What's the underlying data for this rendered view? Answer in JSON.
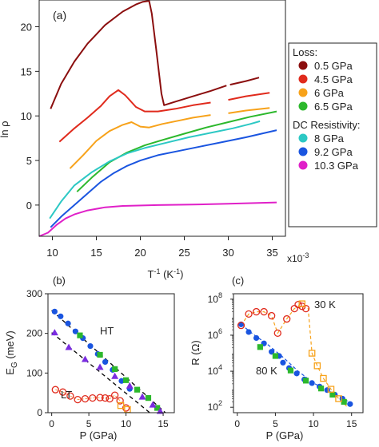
{
  "chart_data": [
    {
      "panel": "(a)",
      "type": "line",
      "xlabel": "T",
      "xlabel_sup": "-1",
      "xlabel_unit_pre": " (K",
      "xlabel_unit_sup": "-1",
      "xlabel_unit_post": ")",
      "x_multiplier": "x10",
      "x_multiplier_sup": "-3",
      "ylabel": "ln ρ",
      "xlim": [
        8.5,
        36.5
      ],
      "ylim": [
        -3.5,
        23
      ],
      "xticks": [
        "10",
        "15",
        "20",
        "25",
        "30",
        "35"
      ],
      "yticks": [
        "0",
        "5",
        "10",
        "15",
        "20"
      ],
      "legend": {
        "groups": [
          {
            "title": "Loss:",
            "entries": [
              {
                "label": "0.5 GPa",
                "color": "#8b0e0e"
              },
              {
                "label": "4.5 GPa",
                "color": "#e02a1c"
              },
              {
                "label": "6 GPa",
                "color": "#f7a21a"
              },
              {
                "label": "6.5 GPa",
                "color": "#2cb82c"
              }
            ]
          },
          {
            "title": "DC Resistivity:",
            "entries": [
              {
                "label": "8 GPa",
                "color": "#2cc8c4"
              },
              {
                "label": "9.2 GPa",
                "color": "#1a55e0"
              },
              {
                "label": "10.3 GPa",
                "color": "#e020c8"
              }
            ]
          }
        ]
      },
      "series": [
        {
          "name": "0.5 GPa",
          "color": "#8b0e0e",
          "segments": [
            [
              [
                9.8,
                10.8
              ],
              [
                11,
                13.6
              ],
              [
                12.5,
                16.1
              ],
              [
                14,
                18.1
              ],
              [
                16,
                20.2
              ],
              [
                18,
                21.7
              ],
              [
                19.5,
                22.5
              ],
              [
                20.3,
                22.8
              ],
              [
                21,
                22.9
              ],
              [
                21.3,
                21.5
              ],
              [
                21.8,
                17.5
              ],
              [
                22.4,
                12.5
              ],
              [
                22.7,
                11.2
              ],
              [
                24,
                11.6
              ],
              [
                26,
                12.2
              ],
              [
                28,
                12.8
              ],
              [
                29.8,
                13.4
              ]
            ],
            [
              [
                30.2,
                13.5
              ],
              [
                32,
                13.9
              ],
              [
                33.5,
                14.3
              ]
            ]
          ]
        },
        {
          "name": "4.5 GPa",
          "color": "#e02a1c",
          "segments": [
            [
              [
                10.8,
                7.1
              ],
              [
                12.5,
                8.6
              ],
              [
                14,
                9.8
              ],
              [
                15.5,
                11.1
              ],
              [
                16.5,
                12.2
              ],
              [
                17.5,
                12.9
              ],
              [
                18.3,
                12.3
              ],
              [
                19.5,
                11
              ],
              [
                20.5,
                10.5
              ],
              [
                22,
                10.5
              ],
              [
                24,
                10.8
              ],
              [
                26,
                11.2
              ],
              [
                28,
                11.5
              ]
            ],
            [
              [
                30,
                11.8
              ],
              [
                32,
                12.2
              ],
              [
                34.7,
                12.6
              ]
            ]
          ]
        },
        {
          "name": "6 GPa",
          "color": "#f7a21a",
          "segments": [
            [
              [
                12,
                4.1
              ],
              [
                13.5,
                5.6
              ],
              [
                15,
                7.2
              ],
              [
                16.5,
                8.3
              ],
              [
                18,
                9
              ],
              [
                19,
                9.3
              ],
              [
                20,
                8.8
              ],
              [
                21,
                8.7
              ],
              [
                22.5,
                9.1
              ],
              [
                24.5,
                9.5
              ],
              [
                26,
                9.8
              ],
              [
                28,
                10.1
              ]
            ],
            [
              [
                30,
                10.3
              ],
              [
                32,
                10.6
              ],
              [
                34.7,
                10.9
              ]
            ]
          ]
        },
        {
          "name": "6.5 GPa",
          "color": "#2cb82c",
          "segments": [
            [
              [
                12.8,
                1.5
              ],
              [
                14.5,
                3.1
              ],
              [
                16.5,
                4.8
              ],
              [
                18.5,
                5.9
              ],
              [
                20.5,
                6.7
              ],
              [
                22.5,
                7.3
              ],
              [
                25,
                8
              ],
              [
                27.5,
                8.7
              ],
              [
                30,
                9.3
              ],
              [
                32.5,
                9.9
              ],
              [
                35.5,
                10.5
              ]
            ]
          ]
        },
        {
          "name": "8 GPa",
          "color": "#2cc8c4",
          "segments": [
            [
              [
                9.7,
                -1.5
              ],
              [
                11,
                0.4
              ],
              [
                12.5,
                2.2
              ],
              [
                14.5,
                3.7
              ],
              [
                16.5,
                4.9
              ],
              [
                18.5,
                5.8
              ],
              [
                20.5,
                6.4
              ],
              [
                23,
                7
              ],
              [
                25.5,
                7.6
              ],
              [
                28,
                8.1
              ],
              [
                30.5,
                8.6
              ],
              [
                32.5,
                9.1
              ],
              [
                33.6,
                9.4
              ]
            ]
          ]
        },
        {
          "name": "9.2 GPa",
          "color": "#1a55e0",
          "segments": [
            [
              [
                9.8,
                -2.5
              ],
              [
                11,
                -1.3
              ],
              [
                12.5,
                0
              ],
              [
                14,
                1.3
              ],
              [
                15.5,
                2.6
              ],
              [
                17,
                3.6
              ],
              [
                18.5,
                4.4
              ],
              [
                20,
                5
              ],
              [
                22,
                5.6
              ],
              [
                24.5,
                6.1
              ],
              [
                27,
                6.6
              ],
              [
                29.5,
                7.1
              ],
              [
                32,
                7.6
              ],
              [
                35.5,
                8.4
              ]
            ]
          ]
        },
        {
          "name": "10.3 GPa",
          "color": "#e020c8",
          "segments": [
            [
              [
                8.5,
                -3.5
              ],
              [
                9.5,
                -3.1
              ],
              [
                10.5,
                -2.2
              ],
              [
                11.5,
                -1.5
              ],
              [
                12.5,
                -1.05
              ],
              [
                14,
                -0.6
              ],
              [
                16,
                -0.25
              ],
              [
                18,
                -0.1
              ],
              [
                22,
                0
              ],
              [
                26,
                0.05
              ],
              [
                30,
                0.15
              ],
              [
                35.5,
                0.3
              ]
            ]
          ]
        }
      ]
    },
    {
      "panel": "(b)",
      "type": "scatter",
      "xlabel": "P (GPa)",
      "ylabel_main": "E",
      "ylabel_sub": "G",
      "ylabel_unit": " (meV)",
      "xlim": [
        -0.5,
        16.5
      ],
      "ylim": [
        0,
        300
      ],
      "xticks": [
        "0",
        "5",
        "10",
        "15"
      ],
      "yticks": [
        "0",
        "100",
        "200",
        "300"
      ],
      "labels": [
        "HT",
        "LT"
      ],
      "series": [
        {
          "name": "HT",
          "color": "#1a55e0",
          "marker": "circle",
          "x": [
            0.4,
            1.2,
            2.2,
            3.2,
            4.2,
            5.2,
            6.2,
            7.2,
            8.2,
            9.4,
            10.5
          ],
          "y": [
            255,
            243,
            225,
            205,
            188,
            168,
            148,
            128,
            108,
            80,
            60
          ]
        },
        {
          "name": "",
          "color": "#2cb82c",
          "marker": "square",
          "x": [
            3.8,
            6.5,
            8.5,
            10,
            11.5,
            13,
            14.2
          ],
          "y": [
            195,
            146,
            110,
            82,
            58,
            37,
            12
          ]
        },
        {
          "name": "",
          "color": "#7a2ce0",
          "marker": "triangle",
          "x": [
            0.4,
            2.3,
            4.5,
            6.5,
            8.5,
            10.5,
            12.2,
            13.6,
            14.6
          ],
          "y": [
            202,
            165,
            135,
            115,
            92,
            68,
            40,
            20,
            4
          ]
        },
        {
          "name": "LT",
          "color": "#e02a1c",
          "marker": "open-circle",
          "x": [
            0.5,
            1.5,
            2.5,
            3.5,
            4.5,
            5.5,
            6.5,
            7.2,
            7.8,
            8.5,
            9.2,
            10
          ],
          "y": [
            58,
            52,
            42,
            33,
            35,
            37,
            38,
            37,
            35,
            44,
            30,
            12
          ]
        },
        {
          "name": "",
          "color": "#f7a21a",
          "marker": "open-square",
          "x": [
            9.3,
            10.2
          ],
          "y": [
            18,
            8
          ]
        }
      ],
      "fits": [
        {
          "color": "#000000",
          "x": [
            0,
            15.3
          ],
          "y": [
            258,
            0
          ]
        },
        {
          "color": "#000000",
          "x": [
            0,
            13.2
          ],
          "y": [
            202,
            0
          ]
        }
      ]
    },
    {
      "panel": "(c)",
      "type": "scatter",
      "xlabel": "P (GPa)",
      "ylabel": "R (Ω)",
      "yscale": "log",
      "xlim": [
        -0.5,
        16.5
      ],
      "ylim": [
        50,
        200000000
      ],
      "xticks": [
        "0",
        "5",
        "10",
        "15"
      ],
      "ytick_base": "10",
      "ytick_exponents": [
        "2",
        "4",
        "6",
        "8"
      ],
      "labels": [
        "30 K",
        "80 K"
      ],
      "series": [
        {
          "name": "80 K",
          "color": "#1a55e0",
          "marker": "circle",
          "x": [
            0.5,
            1.5,
            2.5,
            3.5,
            4.5,
            5.5,
            6,
            6.8,
            7.8,
            8.8,
            9.8,
            10.8,
            11.8,
            12.8,
            13.8,
            14.8
          ],
          "y": [
            4000000,
            1500000,
            700000,
            350000,
            120000,
            70000,
            30000,
            15000,
            7500,
            3500,
            2200,
            1400,
            900,
            500,
            300,
            150
          ]
        },
        {
          "name": "",
          "color": "#2cb82c",
          "marker": "square",
          "x": [
            3,
            5,
            7,
            9,
            11,
            12.5,
            14
          ],
          "y": [
            220000,
            70000,
            11000,
            3000,
            1100,
            500,
            200
          ]
        },
        {
          "name": "30 K",
          "color": "#e02a1c",
          "marker": "open-circle",
          "x": [
            0.5,
            1.5,
            2.5,
            3.5,
            4.5,
            5.3,
            6.5,
            7.5,
            8,
            8.5,
            9
          ],
          "y": [
            3500000,
            15000000,
            20000000,
            20000000,
            12000000,
            1300000,
            8000000,
            30000000,
            50000000,
            40000000,
            30000000
          ]
        },
        {
          "name": "",
          "color": "#f7a21a",
          "marker": "open-square",
          "x": [
            8.5,
            9.8,
            10.5,
            11.3,
            12.3,
            13.3
          ],
          "y": [
            55000000,
            100000,
            20000,
            4000,
            1000,
            300
          ]
        }
      ],
      "fits": [
        {
          "color": "#1a55e0",
          "dashed": true,
          "x": [
            0.5,
            2,
            4,
            6,
            8,
            10,
            12,
            14,
            15
          ],
          "y": [
            4000000,
            1200000,
            300000,
            60000,
            10000,
            2200,
            800,
            300,
            150
          ]
        },
        {
          "color": "#f7a21a",
          "dashed": true,
          "x": [
            0.5,
            1.5,
            2.5,
            3.5,
            4.5,
            5.3,
            6.5,
            7.5,
            8.5,
            9.3,
            9.8,
            10.5,
            11.3,
            12.3,
            13.3,
            14.5
          ],
          "y": [
            3500000,
            15000000,
            20000000,
            20000000,
            12000000,
            1300000,
            8000000,
            30000000,
            45000000,
            30000000,
            100000,
            20000,
            4000,
            1000,
            300,
            100
          ]
        }
      ]
    }
  ]
}
